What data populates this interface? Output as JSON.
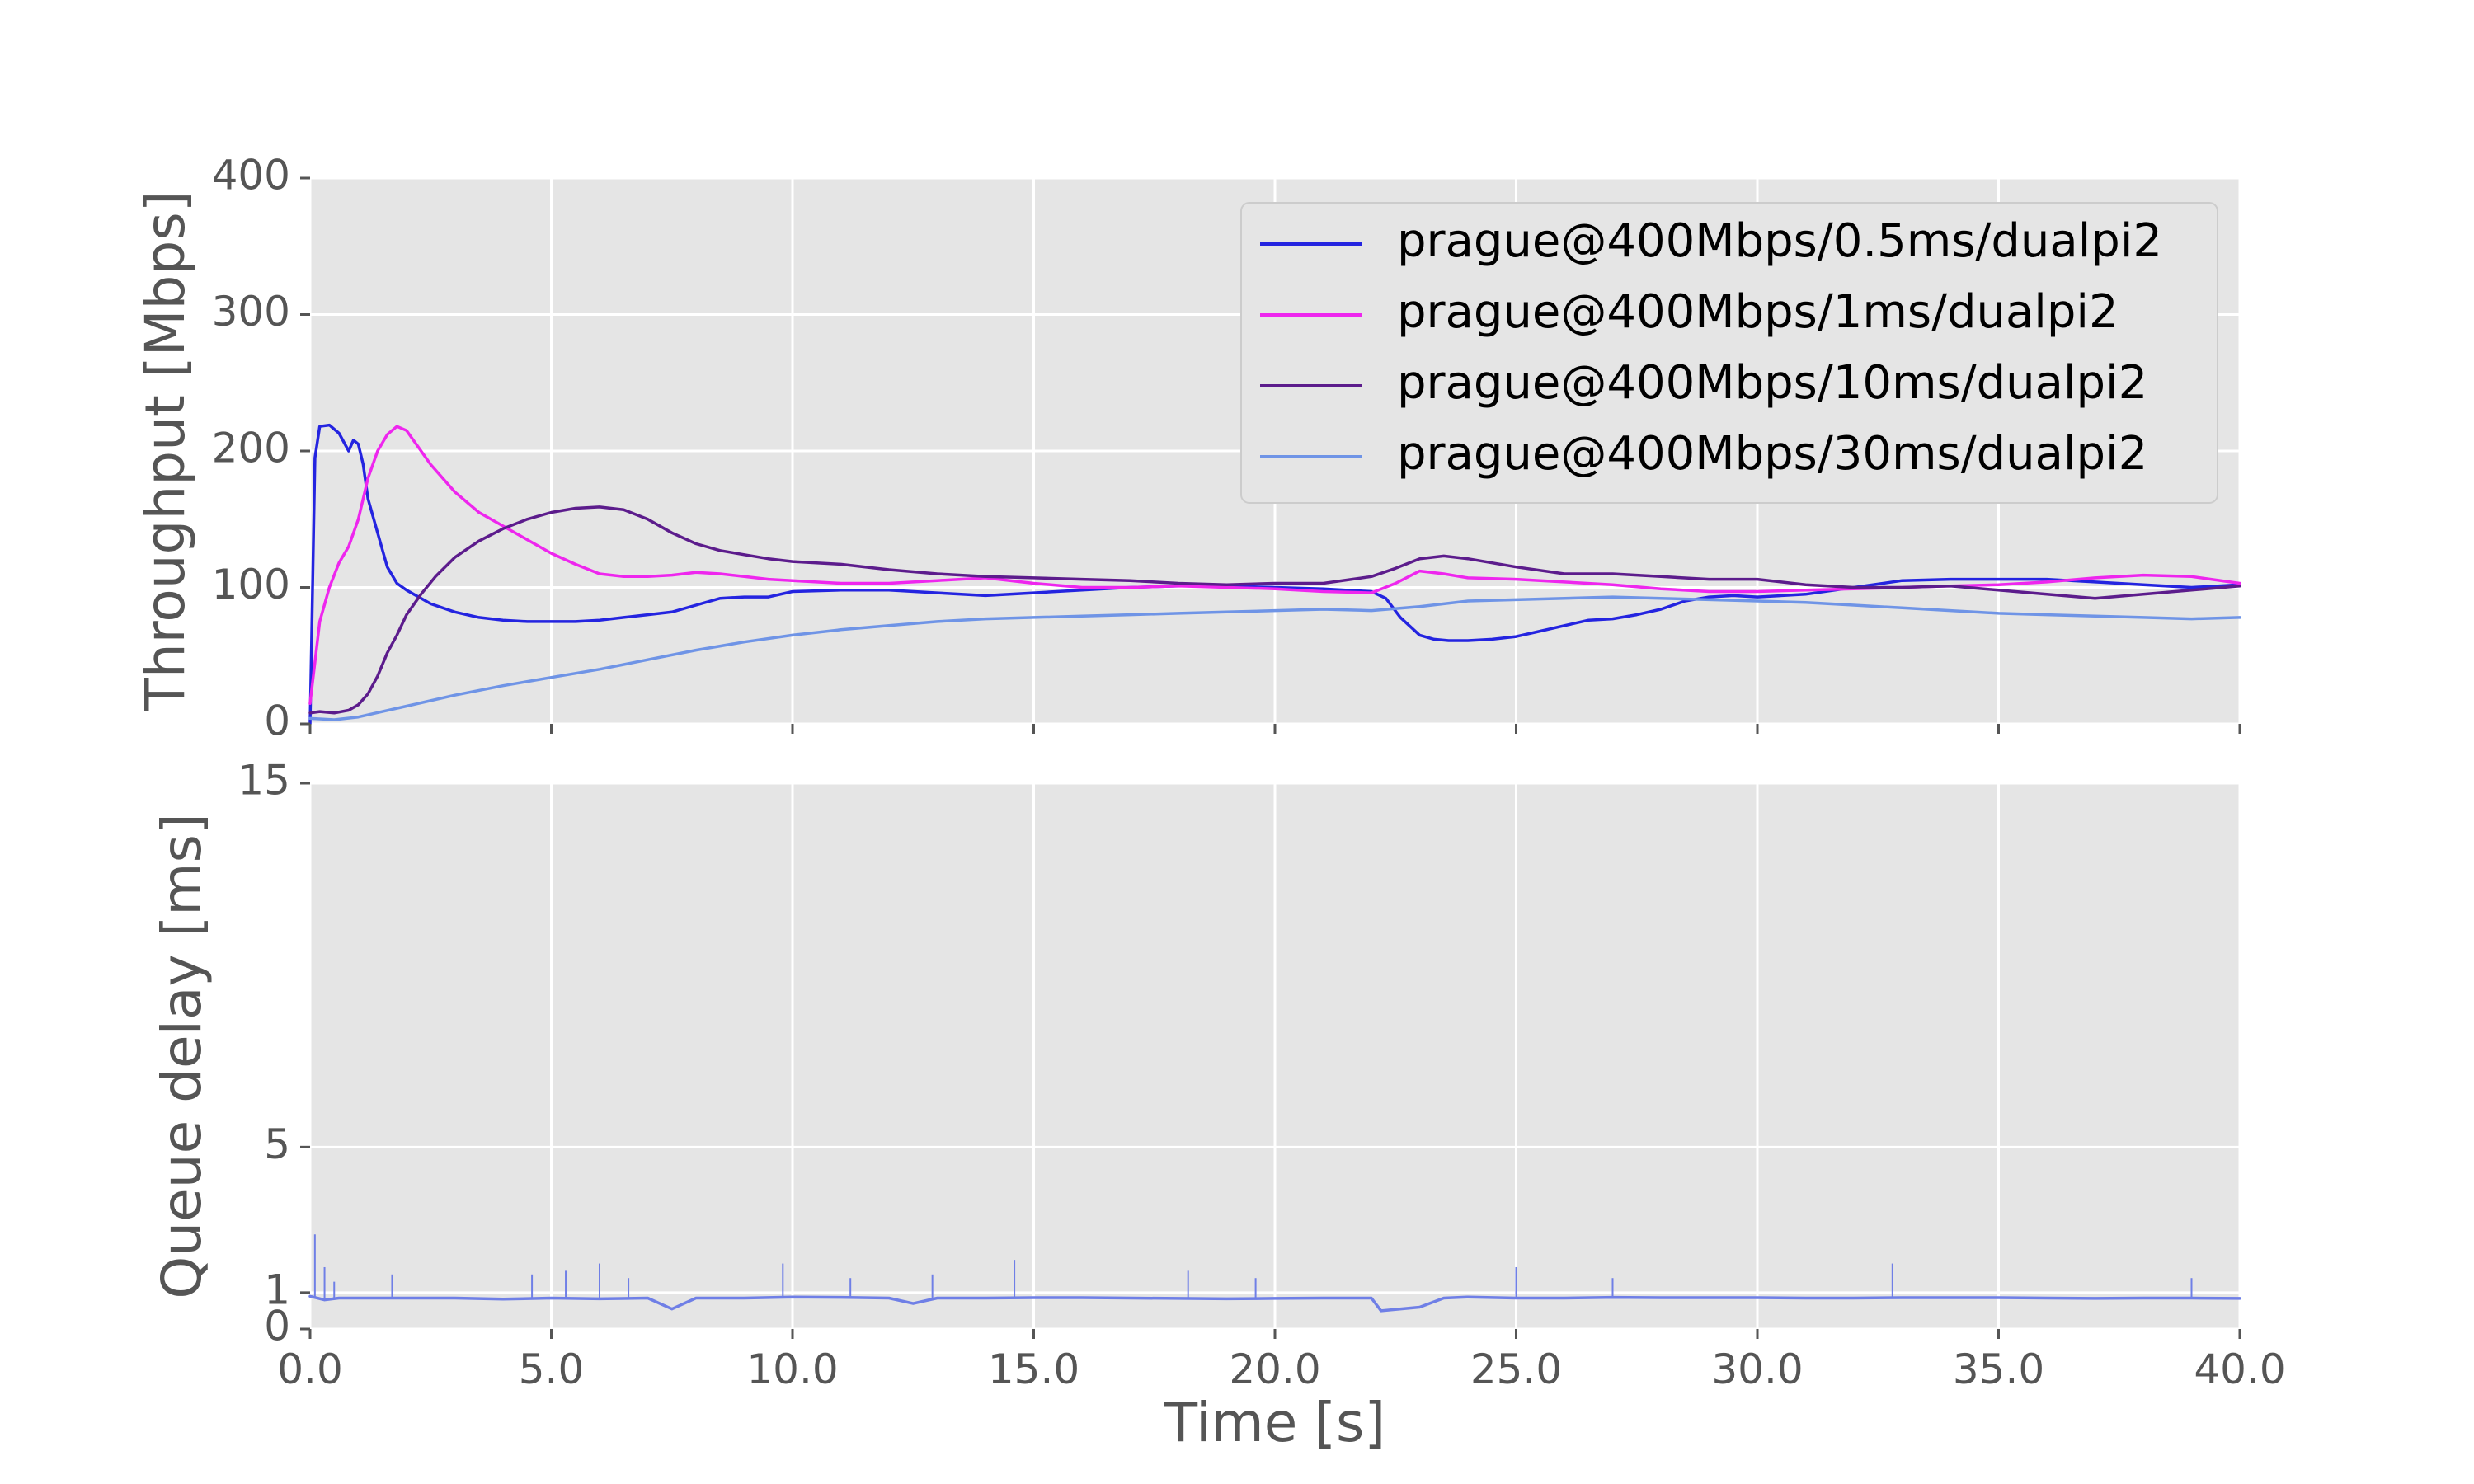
{
  "chart_data": [
    {
      "type": "line",
      "panel": "throughput",
      "title": "",
      "xlabel": "",
      "ylabel": "Throughput [Mbps]",
      "xlim": [
        0,
        40
      ],
      "ylim": [
        0,
        400
      ],
      "yticks": [
        0,
        100,
        200,
        300,
        400
      ],
      "xticks": [
        0,
        5,
        10,
        15,
        20,
        25,
        30,
        35,
        40
      ],
      "grid": true,
      "legend_position": "top-right",
      "series": [
        {
          "name": "prague@400Mbps/0.5ms/dualpi2",
          "color": "#2424e0",
          "x": [
            0,
            0.1,
            0.2,
            0.4,
            0.6,
            0.8,
            0.9,
            1.0,
            1.1,
            1.2,
            1.4,
            1.6,
            1.8,
            2.0,
            2.5,
            3.0,
            3.5,
            4.0,
            4.5,
            5.0,
            5.5,
            6.0,
            6.5,
            7.0,
            7.5,
            8.0,
            8.5,
            9.0,
            9.5,
            10.0,
            11.0,
            12.0,
            13.0,
            14.0,
            15.0,
            16.0,
            17.0,
            18.0,
            19.0,
            20.0,
            21.0,
            22.0,
            22.3,
            22.6,
            23.0,
            23.3,
            23.6,
            24.0,
            24.5,
            25.0,
            25.5,
            26.0,
            26.5,
            27.0,
            27.5,
            28.0,
            28.5,
            29.0,
            29.5,
            30.0,
            31.0,
            32.0,
            33.0,
            34.0,
            35.0,
            36.0,
            37.0,
            38.0,
            39.0,
            40.0
          ],
          "values": [
            0,
            195,
            218,
            219,
            213,
            200,
            208,
            205,
            190,
            165,
            140,
            115,
            103,
            98,
            88,
            82,
            78,
            76,
            75,
            75,
            75,
            76,
            78,
            80,
            82,
            87,
            92,
            93,
            93,
            97,
            98,
            98,
            96,
            94,
            96,
            98,
            100,
            101,
            101,
            100,
            99,
            97,
            92,
            78,
            65,
            62,
            61,
            61,
            62,
            64,
            68,
            72,
            76,
            77,
            80,
            84,
            90,
            93,
            94,
            93,
            95,
            100,
            105,
            106,
            106,
            106,
            104,
            102,
            100,
            102
          ]
        },
        {
          "name": "prague@400Mbps/1ms/dualpi2",
          "color": "#ee26ee",
          "x": [
            0,
            0.2,
            0.4,
            0.6,
            0.8,
            1.0,
            1.2,
            1.4,
            1.6,
            1.8,
            2.0,
            2.2,
            2.5,
            3.0,
            3.5,
            4.0,
            4.5,
            5.0,
            5.5,
            6.0,
            6.5,
            7.0,
            7.5,
            8.0,
            8.5,
            9.0,
            9.5,
            10.0,
            11.0,
            12.0,
            13.0,
            14.0,
            15.0,
            16.0,
            17.0,
            18.0,
            19.0,
            20.0,
            21.0,
            22.0,
            22.5,
            23.0,
            23.5,
            24.0,
            25.0,
            26.0,
            27.0,
            28.0,
            29.0,
            30.0,
            31.0,
            32.0,
            33.0,
            34.0,
            35.0,
            36.0,
            37.0,
            38.0,
            39.0,
            40.0
          ],
          "values": [
            15,
            75,
            100,
            118,
            130,
            150,
            180,
            200,
            212,
            218,
            215,
            205,
            190,
            170,
            155,
            145,
            135,
            125,
            117,
            110,
            108,
            108,
            109,
            111,
            110,
            108,
            106,
            105,
            103,
            103,
            105,
            107,
            103,
            100,
            100,
            101,
            100,
            99,
            97,
            96,
            103,
            112,
            110,
            107,
            106,
            104,
            102,
            99,
            97,
            97,
            98,
            99,
            100,
            101,
            102,
            104,
            107,
            109,
            108,
            103
          ]
        },
        {
          "name": "prague@400Mbps/10ms/dualpi2",
          "color": "#5c1c8c",
          "x": [
            0,
            0.2,
            0.5,
            0.8,
            1.0,
            1.2,
            1.4,
            1.6,
            1.8,
            2.0,
            2.3,
            2.6,
            3.0,
            3.5,
            4.0,
            4.5,
            5.0,
            5.5,
            6.0,
            6.5,
            7.0,
            7.5,
            8.0,
            8.5,
            9.0,
            9.5,
            10.0,
            11.0,
            12.0,
            13.0,
            14.0,
            15.0,
            16.0,
            17.0,
            18.0,
            19.0,
            20.0,
            21.0,
            22.0,
            22.5,
            23.0,
            23.5,
            24.0,
            24.5,
            25.0,
            26.0,
            27.0,
            28.0,
            29.0,
            30.0,
            31.0,
            32.0,
            33.0,
            34.0,
            35.0,
            36.0,
            37.0,
            38.0,
            39.0,
            40.0
          ],
          "values": [
            8,
            9,
            8,
            10,
            14,
            22,
            35,
            52,
            65,
            80,
            95,
            108,
            122,
            134,
            143,
            150,
            155,
            158,
            159,
            157,
            150,
            140,
            132,
            127,
            124,
            121,
            119,
            117,
            113,
            110,
            108,
            107,
            106,
            105,
            103,
            102,
            103,
            103,
            108,
            114,
            121,
            123,
            121,
            118,
            115,
            110,
            110,
            108,
            106,
            106,
            102,
            100,
            100,
            101,
            98,
            95,
            92,
            95,
            98,
            101
          ]
        },
        {
          "name": "prague@400Mbps/30ms/dualpi2",
          "color": "#6f94e6",
          "x": [
            0,
            0.5,
            1.0,
            1.5,
            2.0,
            3.0,
            4.0,
            5.0,
            6.0,
            7.0,
            8.0,
            9.0,
            10.0,
            11.0,
            12.0,
            13.0,
            14.0,
            15.0,
            16.0,
            17.0,
            18.0,
            19.0,
            20.0,
            21.0,
            22.0,
            23.0,
            24.0,
            25.0,
            26.0,
            27.0,
            28.0,
            29.0,
            30.0,
            31.0,
            32.0,
            33.0,
            34.0,
            35.0,
            36.0,
            37.0,
            38.0,
            39.0,
            40.0
          ],
          "values": [
            4,
            3,
            5,
            9,
            13,
            21,
            28,
            34,
            40,
            47,
            54,
            60,
            65,
            69,
            72,
            75,
            77,
            78,
            79,
            80,
            81,
            82,
            83,
            84,
            83,
            86,
            90,
            91,
            92,
            93,
            92,
            91,
            90,
            89,
            87,
            85,
            83,
            81,
            80,
            79,
            78,
            77,
            78
          ]
        }
      ]
    },
    {
      "type": "line",
      "panel": "queue_delay",
      "title": "",
      "xlabel": "Time [s]",
      "ylabel": "Queue delay [ms]",
      "xlim": [
        0,
        40
      ],
      "ylim": [
        0,
        15
      ],
      "yticks": [
        0,
        1,
        5,
        15
      ],
      "xticks": [
        0,
        5,
        10,
        15,
        20,
        25,
        30,
        35,
        40
      ],
      "xtick_labels": [
        "0.0",
        "5.0",
        "10.0",
        "15.0",
        "20.0",
        "25.0",
        "30.0",
        "35.0",
        "40.0"
      ],
      "grid": true,
      "series": [
        {
          "color": "#6f7fe6",
          "x": [
            0,
            0.3,
            0.6,
            1.0,
            2.0,
            3.0,
            4.0,
            5.0,
            6.0,
            7.0,
            7.5,
            8.0,
            9.0,
            10.0,
            11.0,
            12.0,
            12.5,
            13.0,
            14.0,
            15.0,
            16.0,
            17.0,
            18.0,
            19.0,
            20.0,
            21.0,
            22.0,
            22.2,
            23.0,
            23.5,
            24.0,
            25.0,
            26.0,
            27.0,
            28.0,
            29.0,
            30.0,
            31.0,
            32.0,
            33.0,
            34.0,
            35.0,
            36.0,
            37.0,
            38.0,
            39.0,
            40.0
          ],
          "values": [
            0.9,
            0.8,
            0.85,
            0.85,
            0.85,
            0.85,
            0.82,
            0.85,
            0.83,
            0.85,
            0.55,
            0.85,
            0.85,
            0.88,
            0.87,
            0.85,
            0.7,
            0.85,
            0.85,
            0.86,
            0.86,
            0.85,
            0.84,
            0.83,
            0.84,
            0.85,
            0.85,
            0.5,
            0.6,
            0.85,
            0.88,
            0.85,
            0.85,
            0.87,
            0.86,
            0.86,
            0.86,
            0.85,
            0.85,
            0.86,
            0.86,
            0.86,
            0.85,
            0.84,
            0.85,
            0.85,
            0.84
          ]
        }
      ],
      "spikes": [
        {
          "x": 0.1,
          "y": 2.6
        },
        {
          "x": 0.3,
          "y": 1.7
        },
        {
          "x": 0.5,
          "y": 1.3
        },
        {
          "x": 1.7,
          "y": 1.5
        },
        {
          "x": 4.6,
          "y": 1.5
        },
        {
          "x": 5.3,
          "y": 1.6
        },
        {
          "x": 6.0,
          "y": 1.8
        },
        {
          "x": 6.6,
          "y": 1.4
        },
        {
          "x": 9.8,
          "y": 1.8
        },
        {
          "x": 11.2,
          "y": 1.4
        },
        {
          "x": 12.9,
          "y": 1.5
        },
        {
          "x": 14.6,
          "y": 1.9
        },
        {
          "x": 18.2,
          "y": 1.6
        },
        {
          "x": 19.6,
          "y": 1.4
        },
        {
          "x": 25.0,
          "y": 1.7
        },
        {
          "x": 27.0,
          "y": 1.4
        },
        {
          "x": 32.8,
          "y": 1.8
        },
        {
          "x": 39.0,
          "y": 1.4
        }
      ]
    }
  ]
}
